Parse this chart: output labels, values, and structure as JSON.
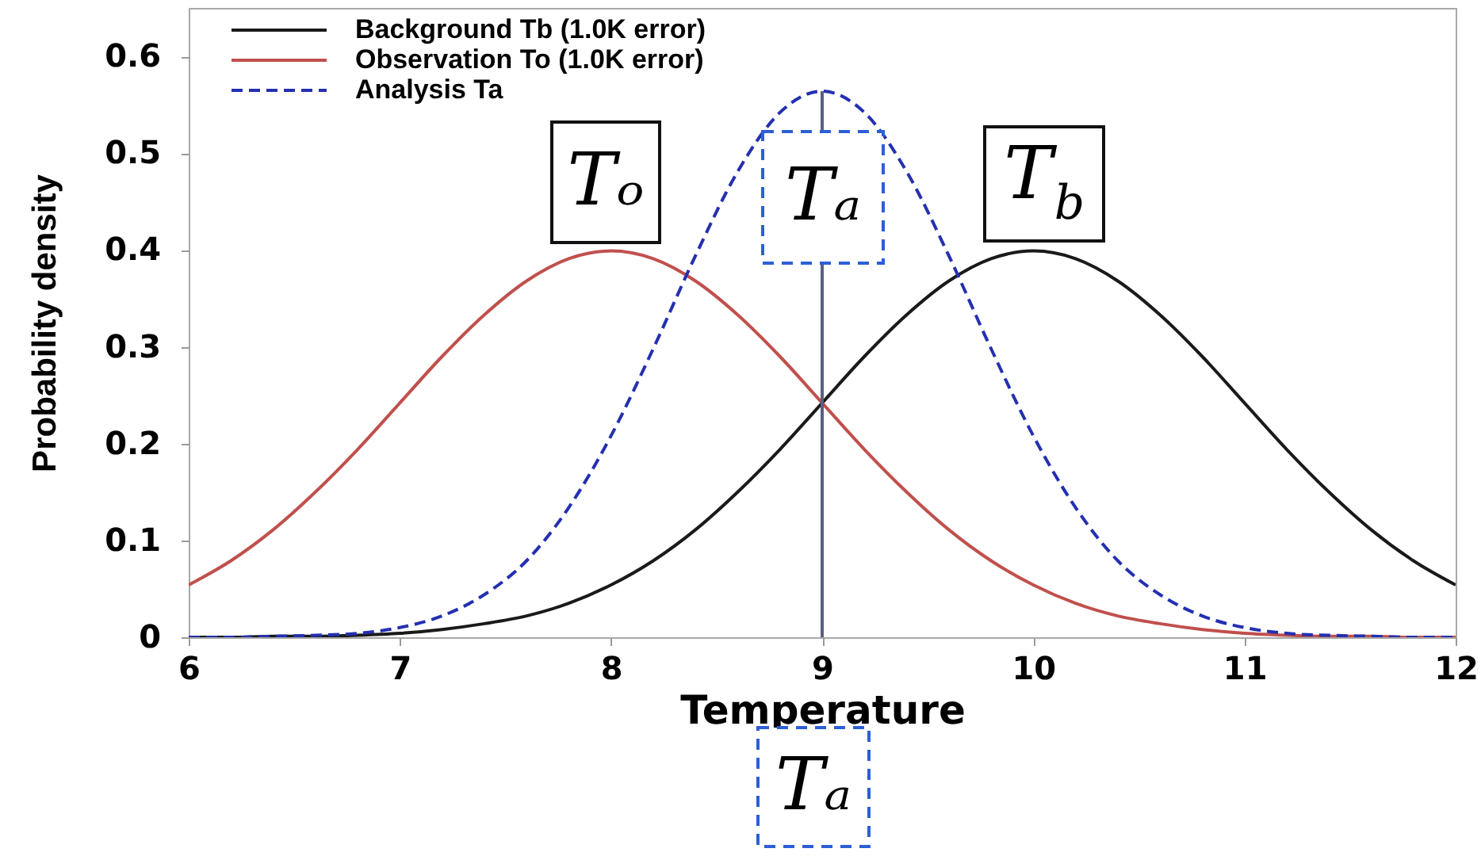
{
  "chart_data": {
    "type": "line",
    "xlabel": "Temperature",
    "ylabel": "Probability density",
    "x": [
      6,
      6.2,
      6.4,
      6.6,
      6.8,
      7,
      7.2,
      7.4,
      7.6,
      7.8,
      8,
      8.2,
      8.4,
      8.6,
      8.8,
      9,
      9.2,
      9.4,
      9.6,
      9.8,
      10,
      10.2,
      10.4,
      10.6,
      10.8,
      11,
      11.2,
      11.4,
      11.6,
      11.8,
      12
    ],
    "series": [
      {
        "name": "Background Tb (1.0K error)",
        "color": "#1a1a1a",
        "line_style": "solid",
        "values": [
          0.0,
          0.0,
          0.001,
          0.001,
          0.002,
          0.004,
          0.008,
          0.014,
          0.022,
          0.035,
          0.054,
          0.079,
          0.111,
          0.15,
          0.194,
          0.242,
          0.29,
          0.333,
          0.368,
          0.391,
          0.399,
          0.391,
          0.368,
          0.333,
          0.29,
          0.242,
          0.194,
          0.15,
          0.111,
          0.079,
          0.054
        ]
      },
      {
        "name": "Observation To (1.0K error)",
        "color": "#c0504d",
        "line_style": "solid",
        "values": [
          0.054,
          0.079,
          0.111,
          0.15,
          0.194,
          0.242,
          0.29,
          0.333,
          0.368,
          0.391,
          0.399,
          0.391,
          0.368,
          0.333,
          0.29,
          0.242,
          0.194,
          0.15,
          0.111,
          0.079,
          0.054,
          0.035,
          0.022,
          0.014,
          0.008,
          0.004,
          0.002,
          0.001,
          0.001,
          0.0,
          0.0
        ]
      },
      {
        "name": "Analysis Ta",
        "color": "#2430b0",
        "line_style": "dashed",
        "values": [
          0.0,
          0.0,
          0.001,
          0.002,
          0.004,
          0.01,
          0.022,
          0.044,
          0.079,
          0.134,
          0.208,
          0.298,
          0.394,
          0.481,
          0.542,
          0.564,
          0.542,
          0.481,
          0.394,
          0.298,
          0.208,
          0.134,
          0.079,
          0.044,
          0.022,
          0.01,
          0.004,
          0.002,
          0.001,
          0.0,
          0.0
        ]
      }
    ],
    "ref_lines": [
      {
        "axis": "x",
        "value": 9,
        "color": "#59607f",
        "line_style": "solid"
      }
    ],
    "xlim": [
      6,
      12
    ],
    "xticks": [
      6,
      7,
      8,
      9,
      10,
      11,
      12
    ],
    "ylim": [
      0,
      0.65
    ],
    "yticks": [
      0,
      0.1,
      0.2,
      0.3,
      0.4,
      0.5,
      0.6
    ],
    "legend": "top left",
    "annotations": [
      "Tₒ",
      "Tₐ",
      "T$_{b}$",
      "Tₐ"
    ]
  }
}
